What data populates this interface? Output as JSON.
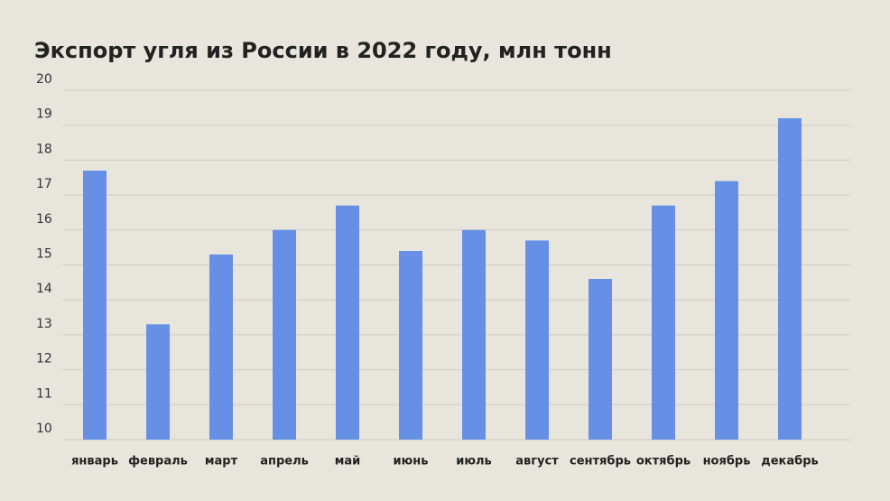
{
  "chart_data": {
    "type": "bar",
    "title": "Экспорт угля из России в 2022 году, млн тонн",
    "categories": [
      "январь",
      "февраль",
      "март",
      "апрель",
      "май",
      "июнь",
      "июль",
      "август",
      "сентябрь",
      "октябрь",
      "ноябрь",
      "декабрь"
    ],
    "values": [
      17.7,
      13.3,
      15.3,
      16.0,
      16.7,
      15.4,
      16.0,
      15.7,
      14.6,
      16.7,
      17.4,
      19.2
    ],
    "color": "#6690e6",
    "ylim": [
      10,
      20
    ],
    "yticks": [
      10,
      11,
      12,
      13,
      14,
      15,
      16,
      17,
      18,
      19,
      20
    ],
    "grid": true
  }
}
